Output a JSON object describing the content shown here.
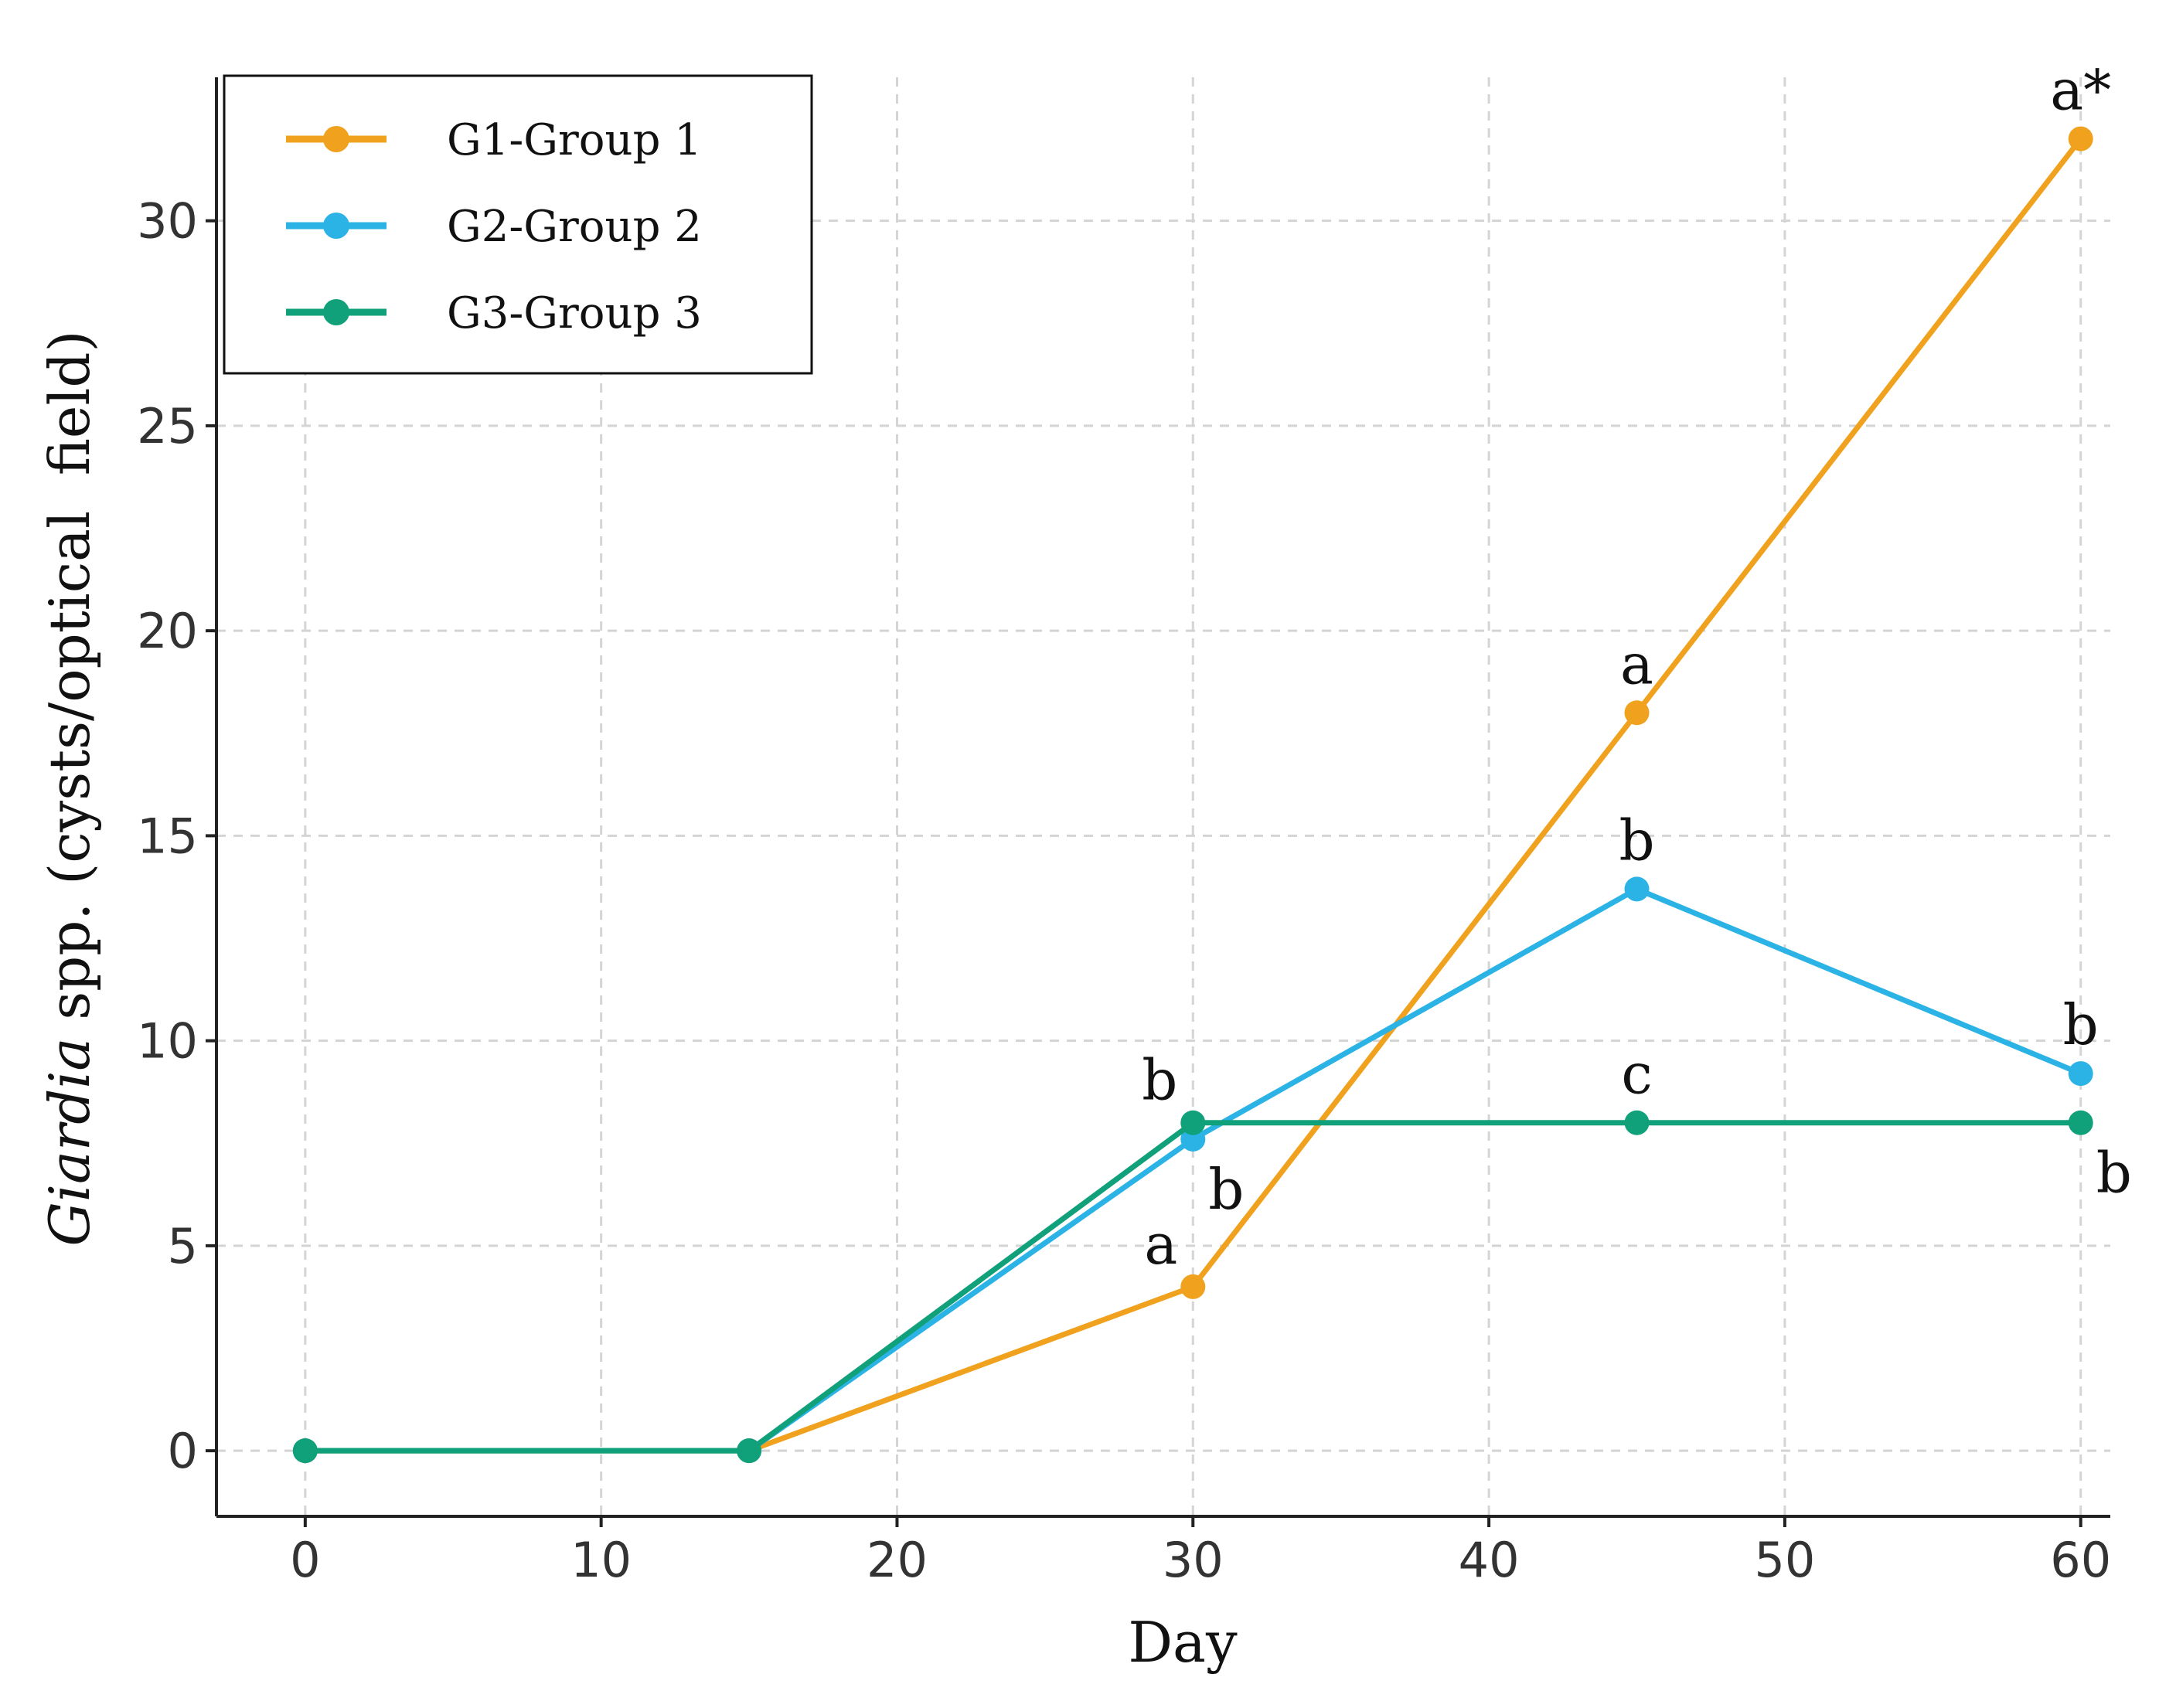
{
  "chart_data": {
    "type": "line",
    "xlabel": "Day",
    "ylabel_italic": "Giardia",
    "ylabel_rest": " spp. (cysts/optical  field)",
    "xlim": [
      -3,
      61
    ],
    "ylim": [
      -1.6,
      33.5
    ],
    "x_ticks": [
      0,
      10,
      20,
      30,
      40,
      50,
      60
    ],
    "y_ticks": [
      0,
      5,
      10,
      15,
      20,
      25,
      30
    ],
    "grid": true,
    "legend_position": "top-left",
    "series": [
      {
        "name": "G1-Group 1",
        "color": "#f0a21e",
        "x": [
          0,
          15,
          30,
          45,
          60
        ],
        "y": [
          0,
          0,
          4,
          18,
          32
        ]
      },
      {
        "name": "G2-Group 2",
        "color": "#2cb3e6",
        "x": [
          0,
          15,
          30,
          45,
          60
        ],
        "y": [
          0,
          0,
          7.6,
          13.7,
          9.2
        ]
      },
      {
        "name": "G3-Group 3",
        "color": "#10a07a",
        "x": [
          0,
          15,
          30,
          45,
          60
        ],
        "y": [
          0,
          0,
          8,
          8,
          8
        ]
      }
    ],
    "annotations": [
      {
        "text": "a*",
        "x": 60,
        "y": 32,
        "pos": "above"
      },
      {
        "text": "a",
        "x": 45,
        "y": 18,
        "pos": "above"
      },
      {
        "text": "b",
        "x": 45,
        "y": 13.7,
        "pos": "above"
      },
      {
        "text": "c",
        "x": 45,
        "y": 8,
        "pos": "above"
      },
      {
        "text": "a",
        "x": 30,
        "y": 4,
        "pos": "above-left"
      },
      {
        "text": "b",
        "x": 30,
        "y": 8,
        "pos": "above-left"
      },
      {
        "text": "b",
        "x": 30,
        "y": 7.6,
        "pos": "below-right"
      },
      {
        "text": "b",
        "x": 60,
        "y": 9.2,
        "pos": "above"
      },
      {
        "text": "b",
        "x": 60,
        "y": 8,
        "pos": "below-right"
      }
    ]
  }
}
